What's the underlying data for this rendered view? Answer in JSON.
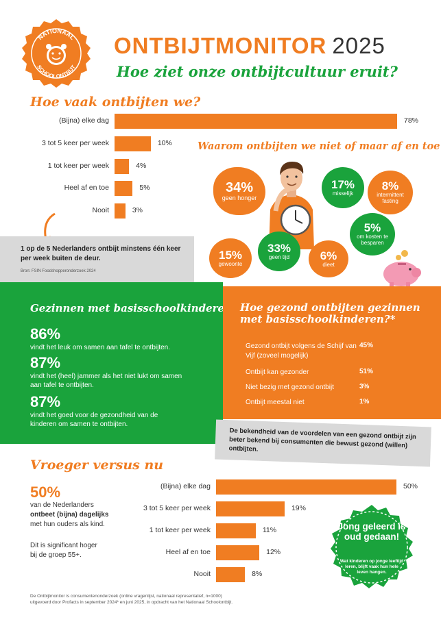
{
  "header": {
    "brand": "ONTBIJTMONITOR",
    "year": "2025",
    "subtitle": "Hoe ziet onze ontbijtcultuur eruit?",
    "logo_text": "NATIONAAL SCHOOLONTBIJT"
  },
  "colors": {
    "orange": "#f07d22",
    "green": "#1aa33c",
    "grey": "#d9d9d9",
    "text": "#333333"
  },
  "chart_data": [
    {
      "type": "bar",
      "orientation": "horizontal",
      "title": "Hoe vaak ontbijten we?",
      "categories": [
        "(Bijna) elke dag",
        "3 tot 5 keer per week",
        "1 tot keer per week",
        "Heel af en toe",
        "Nooit"
      ],
      "values": [
        78,
        10,
        4,
        5,
        3
      ],
      "value_labels": [
        "78%",
        "10%",
        "4%",
        "5%",
        "3%"
      ],
      "xlim": [
        0,
        78
      ]
    },
    {
      "type": "bar",
      "orientation": "horizontal",
      "title": "Vroeger versus nu",
      "categories": [
        "(Bijna) elke dag",
        "3 tot 5 keer per week",
        "1 tot keer per week",
        "Heel af en toe",
        "Nooit"
      ],
      "values": [
        50,
        19,
        11,
        12,
        8
      ],
      "value_labels": [
        "50%",
        "19%",
        "11%",
        "12%",
        "8%"
      ],
      "xlim": [
        0,
        50
      ]
    }
  ],
  "why": {
    "title": "Waarom ontbijten we niet of maar af en toe?",
    "reasons": [
      {
        "pct": "34%",
        "label": "geen honger"
      },
      {
        "pct": "17%",
        "label": "misselijk"
      },
      {
        "pct": "8%",
        "label": "intermittent fasting"
      },
      {
        "pct": "5%",
        "label": "om kosten te besparen"
      },
      {
        "pct": "15%",
        "label": "gewoonte"
      },
      {
        "pct": "33%",
        "label": "geen tijd"
      },
      {
        "pct": "6%",
        "label": "dieet"
      }
    ]
  },
  "callout1": {
    "text": "1 op de 5 Nederlanders ontbijt minstens één keer per week buiten de deur.",
    "source": "Bron: FSIN Foodshopperonderzoek 2024"
  },
  "families": {
    "title": "Gezinnen met basisschoolkinderen",
    "stats": [
      {
        "pct": "86%",
        "text": "vindt het leuk om samen aan tafel te ontbijten."
      },
      {
        "pct": "87%",
        "text": "vindt het (heel) jammer als het niet lukt om samen aan tafel te ontbijten."
      },
      {
        "pct": "87%",
        "text": "vindt het goed voor de gezondheid van de kinderen om samen te ontbijten."
      }
    ]
  },
  "healthy": {
    "title": "Hoe gezond ontbijten gezinnen met basisschoolkinderen?*",
    "rows": [
      {
        "label": "Gezond ontbijt volgens de Schijf van Vijf (zoveel mogelijk)",
        "value": "45%"
      },
      {
        "label": "Ontbijt kan gezonder",
        "value": "51%"
      },
      {
        "label": "Niet bezig met gezond ontbijt",
        "value": "3%"
      },
      {
        "label": "Ontbijt meestal niet",
        "value": "1%"
      }
    ]
  },
  "callout2": {
    "text": "De bekendheid van de voordelen van een gezond ontbijt zijn beter bekend bij consumenten die bewust gezond (willen) ontbijten."
  },
  "then": {
    "title": "Vroeger versus nu",
    "pct": "50%",
    "lines": [
      "van de Nederlanders",
      "ontbeet (bijna) dagelijks",
      "met hun ouders als kind.",
      "Dit is significant hoger",
      "bij de groep 55+."
    ]
  },
  "seal": {
    "title": "Jong geleerd is oud gedaan!",
    "text": "Wat kinderen op jonge leeftijd leren, blijft vaak hun hele leven hangen."
  },
  "footnote": {
    "line1": "De Ontbijtmonitor is consumentenonderzoek (online vragenlijst, nationaal representatief, n=1000)",
    "line2": "uitgevoerd door Profacts in september 2024* en juni 2025, in opdracht van het Nationaal Schoolontbijt."
  }
}
